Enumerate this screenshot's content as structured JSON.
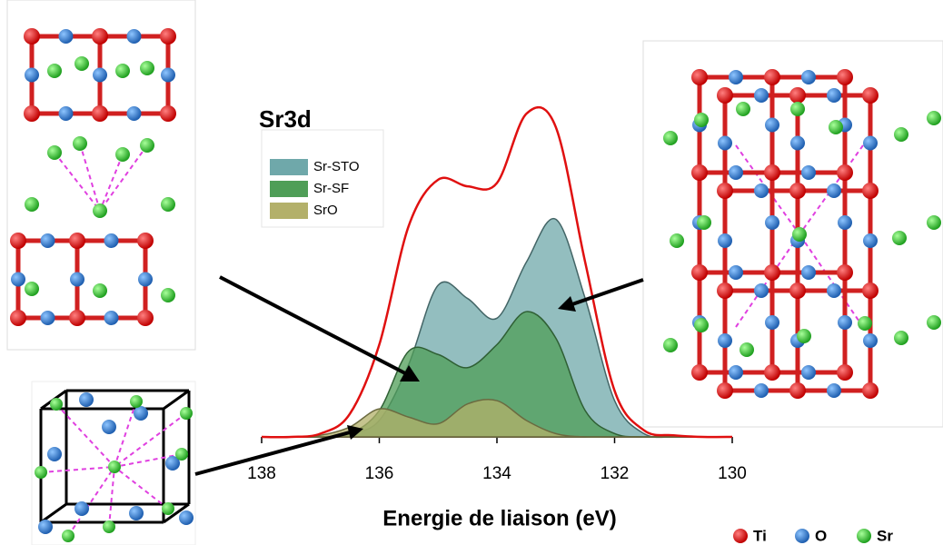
{
  "chart_data": {
    "type": "area",
    "title": "Sr3d",
    "x_label": "Energie de liaison (eV)",
    "x": [
      138,
      137.5,
      137,
      136.5,
      136,
      135.5,
      135,
      134.5,
      134,
      133.5,
      133,
      132.5,
      132,
      131.5,
      131,
      130.5,
      130
    ],
    "series": [
      {
        "name": "Sr-STO",
        "color": "#6fa8aa",
        "values": [
          0,
          0,
          0,
          1,
          5,
          22,
          46,
          42,
          36,
          53,
          66,
          42,
          11,
          1,
          0,
          0,
          0
        ]
      },
      {
        "name": "Sr-SF",
        "color": "#4f9e57",
        "values": [
          0,
          0,
          0,
          1,
          8,
          26,
          25,
          21,
          28,
          38,
          30,
          8,
          1,
          0,
          0,
          0,
          0
        ]
      },
      {
        "name": "SrO",
        "color": "#b3b06a",
        "values": [
          0,
          0,
          0.5,
          3,
          8.5,
          6,
          4,
          10,
          11,
          5,
          1,
          0,
          0,
          0,
          0,
          0,
          0
        ]
      }
    ],
    "envelope": {
      "color": "#e01010",
      "values": [
        0,
        0,
        1,
        7,
        28,
        64,
        78,
        76,
        77,
        98,
        94,
        53,
        14,
        2,
        0.5,
        0,
        0
      ]
    },
    "xlim": [
      138,
      130
    ],
    "xticks": [
      138,
      136,
      134,
      132,
      130
    ],
    "ylim": [
      0,
      100
    ]
  },
  "atom_legend": [
    "Ti",
    "O",
    "Sr"
  ]
}
